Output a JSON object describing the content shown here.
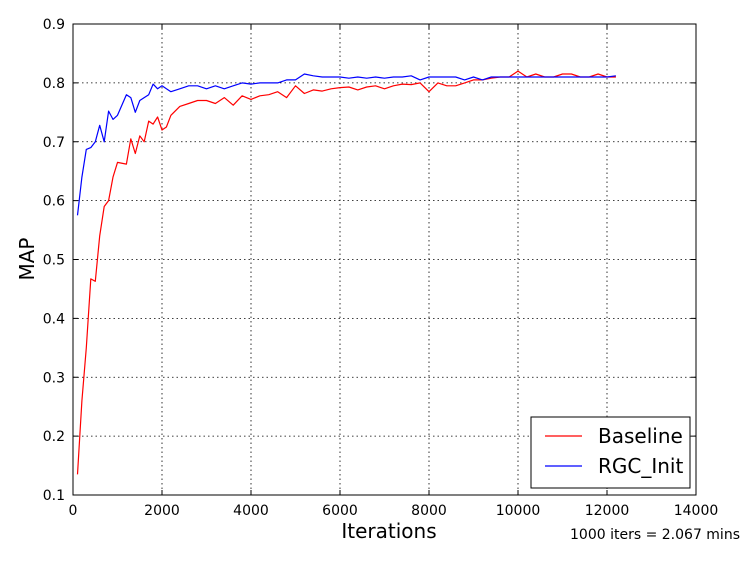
{
  "chart_data": {
    "type": "line",
    "title": "",
    "xlabel": "Iterations",
    "ylabel": "MAP",
    "xlim": [
      0,
      14000
    ],
    "ylim": [
      0.1,
      0.9
    ],
    "x_ticks": [
      "0",
      "2000",
      "4000",
      "6000",
      "8000",
      "10000",
      "12000",
      "14000"
    ],
    "y_ticks": [
      "0.1",
      "0.2",
      "0.3",
      "0.4",
      "0.5",
      "0.6",
      "0.7",
      "0.8",
      "0.9"
    ],
    "grid": true,
    "legend_position": "bottom-right",
    "annotation": "1000 iters = 2.067 mins",
    "series": [
      {
        "name": "Baseline",
        "color": "#ff0000",
        "x": [
          100,
          200,
          300,
          400,
          500,
          600,
          700,
          800,
          900,
          1000,
          1200,
          1300,
          1400,
          1500,
          1600,
          1700,
          1800,
          1900,
          2000,
          2100,
          2200,
          2400,
          2600,
          2800,
          3000,
          3200,
          3400,
          3600,
          3800,
          4000,
          4200,
          4400,
          4600,
          4800,
          5000,
          5200,
          5400,
          5600,
          5800,
          6000,
          6200,
          6400,
          6600,
          6800,
          7000,
          7200,
          7400,
          7600,
          7800,
          8000,
          8200,
          8400,
          8600,
          8800,
          9000,
          9200,
          9400,
          9600,
          9800,
          10000,
          10200,
          10400,
          10600,
          10800,
          11000,
          11200,
          11400,
          11600,
          11800,
          12000,
          12200
        ],
        "values": [
          0.135,
          0.26,
          0.35,
          0.467,
          0.463,
          0.54,
          0.59,
          0.6,
          0.64,
          0.665,
          0.662,
          0.705,
          0.68,
          0.71,
          0.7,
          0.735,
          0.73,
          0.742,
          0.72,
          0.725,
          0.745,
          0.76,
          0.765,
          0.77,
          0.77,
          0.765,
          0.775,
          0.762,
          0.778,
          0.772,
          0.778,
          0.78,
          0.785,
          0.775,
          0.795,
          0.782,
          0.788,
          0.786,
          0.79,
          0.792,
          0.793,
          0.788,
          0.793,
          0.795,
          0.79,
          0.795,
          0.798,
          0.797,
          0.8,
          0.785,
          0.8,
          0.795,
          0.795,
          0.8,
          0.805,
          0.805,
          0.808,
          0.81,
          0.81,
          0.82,
          0.81,
          0.815,
          0.81,
          0.81,
          0.815,
          0.815,
          0.81,
          0.81,
          0.815,
          0.81,
          0.81
        ]
      },
      {
        "name": "RGC_Init",
        "color": "#0000ff",
        "x": [
          100,
          200,
          300,
          400,
          500,
          600,
          700,
          800,
          900,
          1000,
          1200,
          1300,
          1400,
          1500,
          1600,
          1700,
          1800,
          1900,
          2000,
          2100,
          2200,
          2400,
          2600,
          2800,
          3000,
          3200,
          3400,
          3600,
          3800,
          4000,
          4200,
          4400,
          4600,
          4800,
          5000,
          5200,
          5400,
          5600,
          5800,
          6000,
          6200,
          6400,
          6600,
          6800,
          7000,
          7200,
          7400,
          7600,
          7800,
          8000,
          8200,
          8400,
          8600,
          8800,
          9000,
          9200,
          9400,
          9600,
          9800,
          10000,
          10200,
          10400,
          10600,
          10800,
          11000,
          11200,
          11400,
          11600,
          11800,
          12000,
          12200
        ],
        "values": [
          0.575,
          0.64,
          0.687,
          0.69,
          0.7,
          0.728,
          0.7,
          0.752,
          0.738,
          0.745,
          0.78,
          0.775,
          0.75,
          0.77,
          0.775,
          0.78,
          0.798,
          0.79,
          0.795,
          0.79,
          0.785,
          0.79,
          0.795,
          0.795,
          0.79,
          0.795,
          0.79,
          0.795,
          0.8,
          0.798,
          0.8,
          0.8,
          0.8,
          0.805,
          0.805,
          0.815,
          0.812,
          0.81,
          0.81,
          0.81,
          0.808,
          0.81,
          0.808,
          0.81,
          0.808,
          0.81,
          0.81,
          0.812,
          0.805,
          0.81,
          0.81,
          0.81,
          0.81,
          0.805,
          0.81,
          0.805,
          0.81,
          0.81,
          0.81,
          0.81,
          0.81,
          0.81,
          0.81,
          0.81,
          0.81,
          0.81,
          0.81,
          0.81,
          0.81,
          0.81,
          0.812
        ]
      }
    ]
  }
}
